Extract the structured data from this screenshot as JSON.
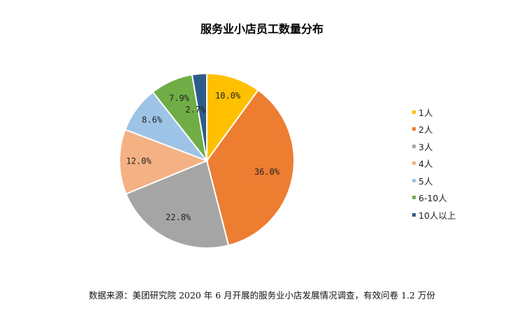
{
  "chart_data": {
    "type": "pie",
    "title": "服务业小店员工数量分布",
    "categories": [
      "1人",
      "2人",
      "3人",
      "4人",
      "5人",
      "6-10人",
      "10人以上"
    ],
    "values": [
      10.0,
      36.0,
      22.8,
      12.0,
      8.6,
      7.9,
      2.7
    ],
    "data_labels": [
      "10.0%",
      "36.0%",
      "22.8%",
      "12.0%",
      "8.6%",
      "7.9%",
      "2.7%"
    ],
    "colors": [
      "#FFC000",
      "#ED7D31",
      "#A5A5A5",
      "#F4B183",
      "#9DC3E6",
      "#70AD47",
      "#2E5C8A"
    ],
    "legend_position": "right",
    "start": "12 o'clock, clockwise"
  },
  "source_note": "数据来源：美团研究院 2020 年 6 月开展的服务业小店发展情况调查，有效问卷 1.2 万份"
}
